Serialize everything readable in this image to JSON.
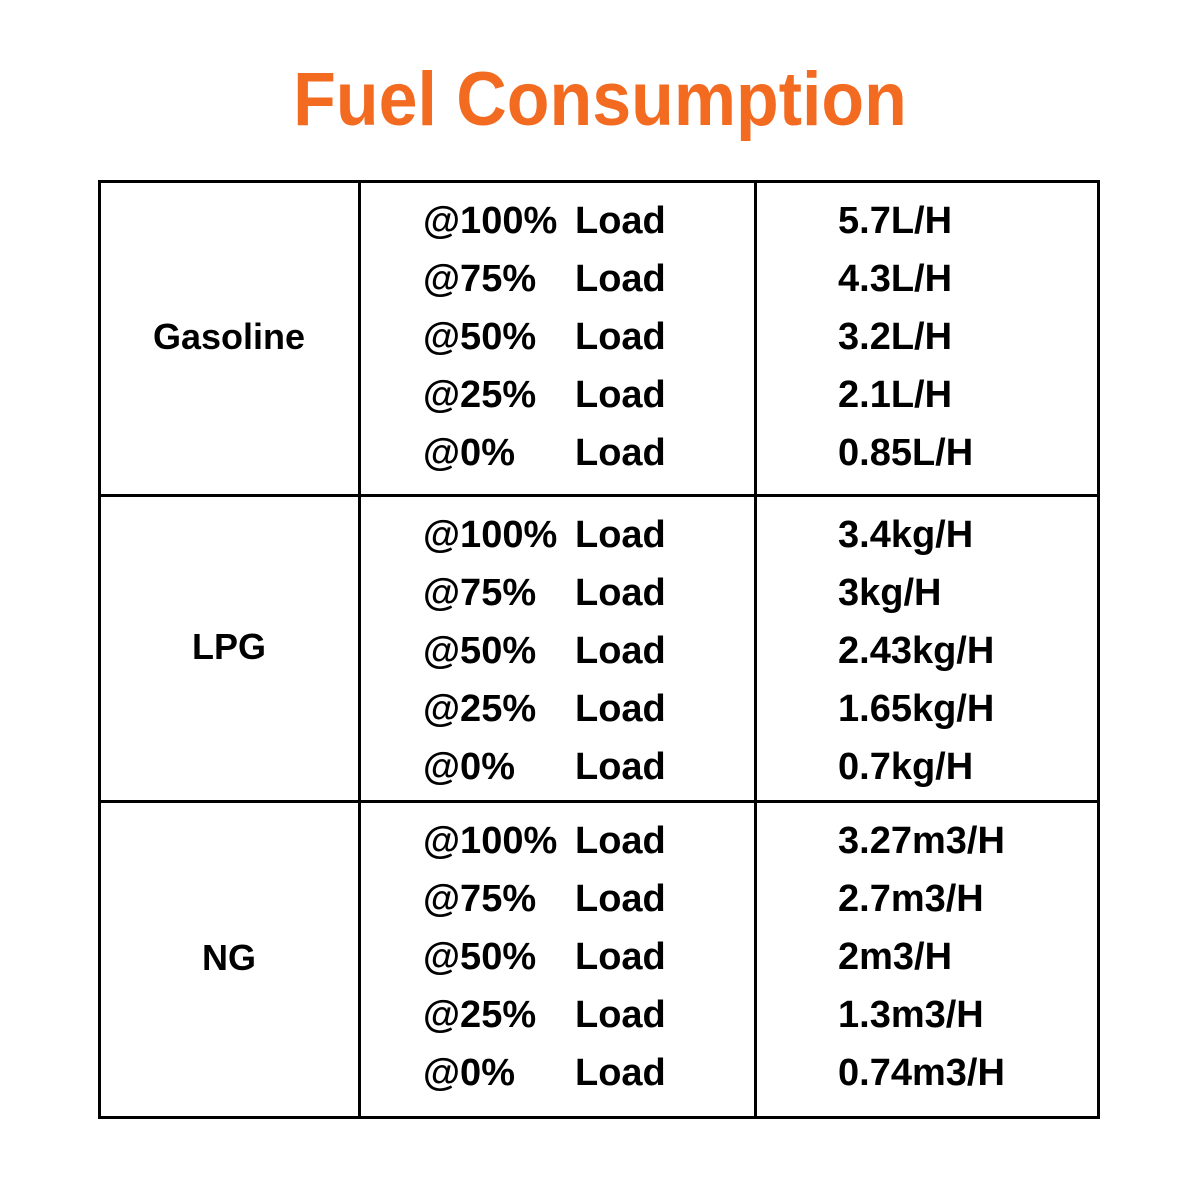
{
  "title": "Fuel Consumption",
  "table": {
    "groups": [
      {
        "fuel": "Gasoline",
        "rows": [
          {
            "load": "@100%",
            "word": "Load",
            "consumption": "5.7L/H"
          },
          {
            "load": "@75%",
            "word": "Load",
            "consumption": "4.3L/H"
          },
          {
            "load": "@50%",
            "word": "Load",
            "consumption": "3.2L/H"
          },
          {
            "load": "@25%",
            "word": "Load",
            "consumption": "2.1L/H"
          },
          {
            "load": "@0%",
            "word": "Load",
            "consumption": "0.85L/H"
          }
        ]
      },
      {
        "fuel": "LPG",
        "rows": [
          {
            "load": "@100%",
            "word": "Load",
            "consumption": "3.4kg/H"
          },
          {
            "load": "@75%",
            "word": "Load",
            "consumption": "3kg/H"
          },
          {
            "load": "@50%",
            "word": "Load",
            "consumption": "2.43kg/H"
          },
          {
            "load": "@25%",
            "word": "Load",
            "consumption": "1.65kg/H"
          },
          {
            "load": "@0%",
            "word": "Load",
            "consumption": "0.7kg/H"
          }
        ]
      },
      {
        "fuel": "NG",
        "rows": [
          {
            "load": "@100%",
            "word": "Load",
            "consumption": "3.27m3/H"
          },
          {
            "load": "@75%",
            "word": "Load",
            "consumption": "2.7m3/H"
          },
          {
            "load": "@50%",
            "word": "Load",
            "consumption": "2m3/H"
          },
          {
            "load": "@25%",
            "word": "Load",
            "consumption": "1.3m3/H"
          },
          {
            "load": "@0%",
            "word": "Load",
            "consumption": "0.74m3/H"
          }
        ]
      }
    ]
  }
}
